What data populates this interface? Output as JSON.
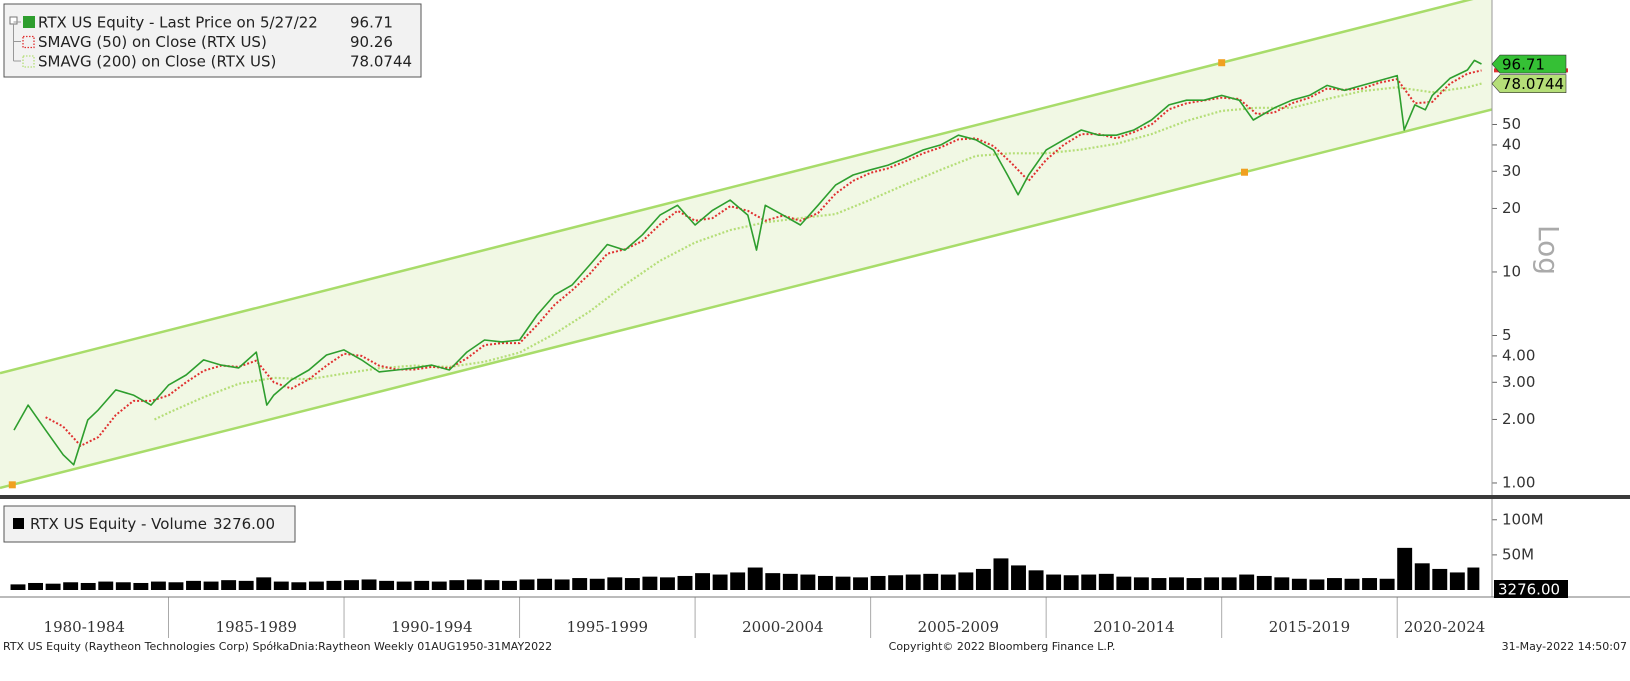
{
  "chart_data": [
    {
      "type": "line",
      "log_scale": true,
      "scale_label": "Log",
      "xlim": [
        1980.2,
        2022.7
      ],
      "ylim": [
        0.877,
        194.5
      ],
      "yticks": [
        {
          "value": 1,
          "label": "1.00"
        },
        {
          "value": 2,
          "label": "2.00"
        },
        {
          "value": 3,
          "label": "3.00"
        },
        {
          "value": 4,
          "label": "4.00"
        },
        5,
        10,
        20,
        30,
        40,
        50
      ],
      "series": [
        {
          "name": "RTX US Equity - Last Price on 5/27/22",
          "color": "#2e9e2e",
          "x": [
            1980.6,
            1981.0,
            1981.5,
            1982.0,
            1982.3,
            1982.7,
            1983.0,
            1983.5,
            1984.0,
            1984.5,
            1985.0,
            1985.5,
            1986.0,
            1986.5,
            1987.0,
            1987.5,
            1987.8,
            1988.0,
            1988.5,
            1989.0,
            1989.5,
            1990.0,
            1990.5,
            1991.0,
            1991.5,
            1992.0,
            1992.5,
            1993.0,
            1993.5,
            1994.0,
            1994.5,
            1995.0,
            1995.5,
            1996.0,
            1996.5,
            1997.0,
            1997.5,
            1998.0,
            1998.5,
            1999.0,
            1999.5,
            2000.0,
            2000.5,
            2001.0,
            2001.5,
            2001.75,
            2002.0,
            2002.5,
            2003.0,
            2003.5,
            2004.0,
            2004.5,
            2005.0,
            2005.5,
            2006.0,
            2006.5,
            2007.0,
            2007.5,
            2008.0,
            2008.5,
            2008.9,
            2009.2,
            2009.5,
            2010.0,
            2010.5,
            2011.0,
            2011.5,
            2012.0,
            2012.5,
            2013.0,
            2013.5,
            2014.0,
            2014.5,
            2015.0,
            2015.5,
            2015.9,
            2016.5,
            2017.0,
            2017.5,
            2018.0,
            2018.5,
            2019.0,
            2019.5,
            2020.0,
            2020.2,
            2020.5,
            2020.8,
            2021.0,
            2021.5,
            2022.0,
            2022.2,
            2022.4
          ],
          "values": [
            1.78,
            2.34,
            1.78,
            1.36,
            1.22,
            1.99,
            2.22,
            2.76,
            2.61,
            2.34,
            2.91,
            3.25,
            3.83,
            3.62,
            3.51,
            4.17,
            2.34,
            2.61,
            3.08,
            3.43,
            4.04,
            4.27,
            3.83,
            3.36,
            3.43,
            3.51,
            3.62,
            3.43,
            4.17,
            4.76,
            4.66,
            4.76,
            6.25,
            7.79,
            8.68,
            10.8,
            13.5,
            12.7,
            15.0,
            18.6,
            20.7,
            16.7,
            19.6,
            21.9,
            18.6,
            12.7,
            20.7,
            18.6,
            16.7,
            20.7,
            25.8,
            28.8,
            30.5,
            32.1,
            34.7,
            37.9,
            40.0,
            44.5,
            42.3,
            37.9,
            28.8,
            23.2,
            28.8,
            37.9,
            42.3,
            47.1,
            44.5,
            44.5,
            47.1,
            52.5,
            61.9,
            65.2,
            65.2,
            68.7,
            65.2,
            52.5,
            59.9,
            65.2,
            68.7,
            76.6,
            72.6,
            76.6,
            80.8,
            85.2,
            47.1,
            61.9,
            58.7,
            68.7,
            82.7,
            90.6,
            100.6,
            96.71
          ]
        },
        {
          "name": "SMAVG (50) on Close (RTX US)",
          "color": "#e03030",
          "x": [
            1981.5,
            1982.0,
            1982.5,
            1983.0,
            1983.5,
            1984.0,
            1984.5,
            1985.0,
            1985.5,
            1986.0,
            1986.5,
            1987.0,
            1987.5,
            1988.0,
            1988.5,
            1989.0,
            1989.5,
            1990.0,
            1990.5,
            1991.0,
            1991.5,
            1992.0,
            1992.5,
            1993.0,
            1993.5,
            1994.0,
            1994.5,
            1995.0,
            1995.5,
            1996.0,
            1996.5,
            1997.0,
            1997.5,
            1998.0,
            1998.5,
            1999.0,
            1999.5,
            2000.0,
            2000.5,
            2001.0,
            2001.5,
            2002.0,
            2002.5,
            2003.0,
            2003.5,
            2004.0,
            2004.5,
            2005.0,
            2005.5,
            2006.0,
            2006.5,
            2007.0,
            2007.5,
            2008.0,
            2008.5,
            2009.0,
            2009.5,
            2010.0,
            2010.5,
            2011.0,
            2011.5,
            2012.0,
            2012.5,
            2013.0,
            2013.5,
            2014.0,
            2014.5,
            2015.0,
            2015.5,
            2016.0,
            2016.5,
            2017.0,
            2017.5,
            2018.0,
            2018.5,
            2019.0,
            2019.5,
            2020.0,
            2020.5,
            2021.0,
            2021.5,
            2022.0,
            2022.4
          ],
          "values": [
            2.05,
            1.85,
            1.5,
            1.65,
            2.1,
            2.45,
            2.45,
            2.6,
            3.0,
            3.4,
            3.6,
            3.55,
            3.8,
            3.0,
            2.8,
            3.1,
            3.6,
            4.1,
            4.0,
            3.6,
            3.45,
            3.45,
            3.55,
            3.5,
            3.9,
            4.5,
            4.6,
            4.6,
            5.6,
            7.0,
            8.2,
            9.8,
            12.2,
            12.8,
            14.0,
            16.8,
            19.5,
            17.5,
            18.0,
            20.5,
            19.5,
            17.5,
            18.5,
            17.5,
            19.0,
            23.5,
            27.0,
            29.5,
            31.0,
            33.5,
            36.5,
            39.0,
            42.5,
            43.0,
            39.5,
            33,
            27,
            34,
            40,
            45,
            45,
            43,
            46,
            50,
            59,
            63,
            65,
            67,
            66,
            56,
            57,
            63,
            67,
            74,
            73,
            74,
            79,
            82,
            63,
            64,
            78,
            87,
            90.26
          ]
        },
        {
          "name": "SMAVG (200) on Close (RTX US)",
          "color": "#b5de78",
          "x": [
            1984.6,
            1985,
            1986,
            1987,
            1988,
            1989,
            1990,
            1991,
            1992,
            1993,
            1994,
            1995,
            1996,
            1997,
            1998,
            1999,
            2000,
            2001,
            2002,
            2003,
            2004,
            2005,
            2006,
            2007,
            2008,
            2009,
            2010,
            2011,
            2012,
            2013,
            2014,
            2015,
            2016,
            2017,
            2018,
            2019,
            2020,
            2021,
            2022,
            2022.4
          ],
          "values": [
            2.0,
            2.15,
            2.55,
            2.95,
            3.15,
            3.1,
            3.3,
            3.5,
            3.6,
            3.55,
            3.75,
            4.15,
            5.1,
            6.5,
            8.7,
            11.3,
            13.8,
            15.8,
            17.2,
            18.0,
            18.8,
            22.0,
            26.0,
            30.5,
            35.5,
            36.5,
            36.5,
            38.0,
            40.5,
            45.0,
            52,
            58,
            60,
            60,
            66,
            72,
            75,
            71,
            75,
            78.0744
          ]
        }
      ],
      "channel": {
        "color": "#a8dc6a",
        "fill": "#f1f8e4",
        "upper": {
          "x": [
            1980.55,
            2015.0
          ],
          "values": [
            3.43,
            98.1
          ]
        },
        "lower": {
          "x": [
            1980.55,
            2015.65
          ],
          "values": [
            0.98,
            29.7
          ]
        }
      }
    },
    {
      "type": "bar",
      "xlim": [
        1980.2,
        2022.7
      ],
      "ylim": [
        0,
        131000000
      ],
      "yticks": [
        {
          "value": 100000000,
          "label": "100M"
        },
        {
          "value": 50000000,
          "label": "50M"
        }
      ],
      "series": [
        {
          "name": "RTX US Equity - Volume",
          "color": "#000000",
          "last_value_label": "3276.00",
          "x": [
            1980.5,
            1981,
            1981.5,
            1982,
            1982.5,
            1983,
            1983.5,
            1984,
            1984.5,
            1985,
            1985.5,
            1986,
            1986.5,
            1987,
            1987.5,
            1988,
            1988.5,
            1989,
            1989.5,
            1990,
            1990.5,
            1991,
            1991.5,
            1992,
            1992.5,
            1993,
            1993.5,
            1994,
            1994.5,
            1995,
            1995.5,
            1996,
            1996.5,
            1997,
            1997.5,
            1998,
            1998.5,
            1999,
            1999.5,
            2000,
            2000.5,
            2001,
            2001.5,
            2002,
            2002.5,
            2003,
            2003.5,
            2004,
            2004.5,
            2005,
            2005.5,
            2006,
            2006.5,
            2007,
            2007.5,
            2008,
            2008.5,
            2009,
            2009.5,
            2010,
            2010.5,
            2011,
            2011.5,
            2012,
            2012.5,
            2013,
            2013.5,
            2014,
            2014.5,
            2015,
            2015.5,
            2016,
            2016.5,
            2017,
            2017.5,
            2018,
            2018.5,
            2019,
            2019.5,
            2020,
            2020.5,
            2021,
            2021.5,
            2022,
            2022.4
          ],
          "values": [
            8000000,
            10000000,
            9000000,
            11000000,
            10000000,
            12000000,
            11000000,
            10000000,
            12000000,
            11000000,
            13000000,
            12000000,
            14000000,
            13000000,
            18000000,
            12000000,
            11000000,
            12000000,
            13000000,
            14000000,
            15000000,
            13000000,
            12000000,
            13000000,
            12000000,
            14000000,
            15000000,
            14000000,
            13000000,
            15000000,
            16000000,
            15000000,
            17000000,
            16000000,
            18000000,
            17000000,
            19000000,
            18000000,
            20000000,
            24000000,
            22000000,
            25000000,
            32000000,
            24000000,
            23000000,
            22000000,
            20000000,
            19000000,
            18000000,
            20000000,
            21000000,
            22000000,
            23000000,
            22000000,
            25000000,
            30000000,
            45000000,
            35000000,
            28000000,
            22000000,
            21000000,
            22000000,
            23000000,
            19000000,
            18000000,
            17000000,
            18000000,
            17000000,
            18000000,
            18000000,
            22000000,
            20000000,
            18000000,
            16000000,
            15000000,
            17000000,
            16000000,
            17000000,
            16000000,
            60000000,
            38000000,
            30000000,
            25000000,
            32000000,
            3276
          ]
        }
      ],
      "periods": [
        {
          "label": "1980-1984",
          "start": 1980,
          "end": 1985
        },
        {
          "label": "1985-1989",
          "start": 1985,
          "end": 1990
        },
        {
          "label": "1990-1994",
          "start": 1990,
          "end": 1995
        },
        {
          "label": "1995-1999",
          "start": 1995,
          "end": 2000
        },
        {
          "label": "2000-2004",
          "start": 2000,
          "end": 2005
        },
        {
          "label": "2005-2009",
          "start": 2005,
          "end": 2010
        },
        {
          "label": "2010-2014",
          "start": 2010,
          "end": 2015
        },
        {
          "label": "2015-2019",
          "start": 2015,
          "end": 2020
        },
        {
          "label": "2020-2024",
          "start": 2020,
          "end": 2025
        }
      ]
    }
  ],
  "footer": {
    "left": "RTX US Equity (Raytheon Technologies Corp) SpółkaDnia:Raytheon  Weekly 01AUG1950-31MAY2022",
    "center": "Copyright© 2022 Bloomberg Finance L.P.",
    "right": "31-May-2022 14:50:07"
  }
}
